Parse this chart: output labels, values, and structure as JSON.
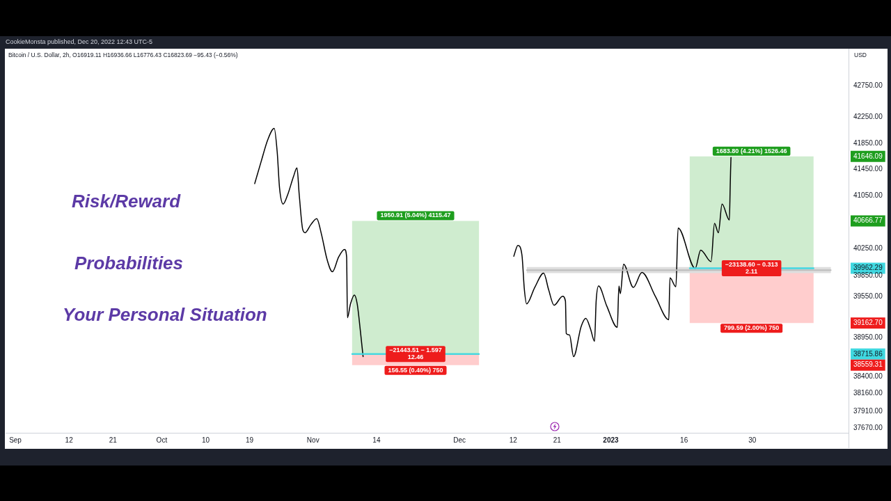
{
  "chart_data": {
    "type": "line",
    "title": "Bitcoin / U.S. Dollar, 2h, O16919.11 H16936.66 L16776.43 C16823.69 −95.43 (−0.56%)",
    "subtitle": "CookieMonsta published, Dec 20, 2022 12:43 UTC-5",
    "ylabel": "USD",
    "log": true,
    "marker": "none",
    "xlim": [
      "2022-08-30T00:00",
      "2023-02-18T17:00"
    ],
    "xticks": [
      {
        "value": "2022-09-01",
        "label": "Sep"
      },
      {
        "value": "2022-09-12",
        "label": "12"
      },
      {
        "value": "2022-09-21",
        "label": "21"
      },
      {
        "value": "2022-10-01",
        "label": "Oct"
      },
      {
        "value": "2022-10-10",
        "label": "10"
      },
      {
        "value": "2022-10-19",
        "label": "19"
      },
      {
        "value": "2022-11-01",
        "label": "Nov"
      },
      {
        "value": "2022-11-14",
        "label": "14"
      },
      {
        "value": "2022-12-01",
        "label": "Dec"
      },
      {
        "value": "2022-12-12",
        "label": "12"
      },
      {
        "value": "2022-12-21",
        "label": "21"
      },
      {
        "value": "2023-01-01",
        "label": "2023"
      },
      {
        "value": "2023-01-16",
        "label": "16"
      },
      {
        "value": "2023-01-30",
        "label": "30"
      }
    ],
    "ylim": [
      37607,
      43335
    ],
    "yticks": [
      {
        "value": 42750,
        "label": "42750.00"
      },
      {
        "value": 42250,
        "label": "42250.00"
      },
      {
        "value": 41850,
        "label": "41850.00"
      },
      41646.09,
      {
        "value": 41450,
        "label": "41450.00"
      },
      {
        "value": 41050,
        "label": "41050.00"
      },
      40666.77,
      {
        "value": 40250,
        "label": "40250.00"
      },
      39962.29,
      {
        "value": 39850,
        "label": "39850.00"
      },
      {
        "value": 39550,
        "label": "39550.00"
      },
      {
        "value": 39162.7,
        "label": "39162.70"
      },
      {
        "value": 38950,
        "label": "38950.00"
      },
      38715.86,
      38559.31,
      {
        "value": 38400,
        "label": "38400.00"
      },
      {
        "value": 38160,
        "label": "38160.00"
      },
      {
        "value": 37910,
        "label": "37910.00"
      },
      {
        "value": 37670,
        "label": "37670.00"
      }
    ],
    "series": [
      {
        "type": "line",
        "color": "#40d8e0",
        "x": [
          "2022-11-09T00:00",
          "2022-12-05T00:00"
        ],
        "values": [
          38715.86,
          38715.86
        ],
        "lower": [
          38715.86,
          38715.86
        ],
        "upper": [
          40666.77,
          40666.77
        ]
      },
      {
        "type": "line",
        "color": "#40d8e0",
        "x": [
          "2022-11-09T00:00",
          "2022-12-05T00:00"
        ],
        "values": [
          38715.86,
          38715.86
        ],
        "lower": [
          38559.31,
          38559.31
        ],
        "upper": [
          38715.86,
          38715.86
        ]
      },
      {
        "type": "line",
        "color": "#40d8e0",
        "x": [
          "2023-01-17T04:00",
          "2023-02-11T13:00"
        ],
        "values": [
          39962.29,
          39962.29
        ],
        "lower": [
          39962.29,
          39962.29
        ],
        "upper": [
          41646.09,
          41646.09
        ]
      },
      {
        "type": "line",
        "color": "#40d8e0",
        "x": [
          "2023-01-17T04:00",
          "2023-02-11T13:00"
        ],
        "values": [
          39962.29,
          39962.29
        ],
        "lower": [
          39162.7,
          39162.7
        ],
        "upper": [
          39962.29,
          39962.29
        ]
      },
      {
        "type": "line",
        "color": "#bdbdbd",
        "x": [
          "2022-12-14T19:00",
          "2023-02-15T02:00"
        ],
        "values": [
          39935,
          39935
        ],
        "lower": [
          39890,
          39890
        ],
        "upper": [
          39980,
          39980
        ]
      },
      {
        "type": "line",
        "color": "#000000",
        "x": [
          "2022-10-20T01:00",
          "2022-10-21T08:00",
          "2022-10-22T18:00",
          "2022-10-24T01:00",
          "2022-10-24T16:00",
          "2022-10-25T03:00",
          "2022-10-25T21:00",
          "2022-10-26T19:00",
          "2022-10-28T00:00",
          "2022-10-28T17:00",
          "2022-10-29T04:00",
          "2022-10-29T21:00",
          "2022-10-30T09:00",
          "2022-10-31T13:00",
          "2022-11-01T18:00",
          "2022-11-02T17:00",
          "2022-11-03T21:00",
          "2022-11-04T23:00",
          "2022-11-06T06:00",
          "2022-11-07T11:00",
          "2022-11-07T21:00",
          "2022-11-08T01:00",
          "2022-11-08T16:00",
          "2022-11-09T11:00",
          "2022-11-10T01:00",
          "2022-11-10T18:00",
          "2022-11-11T06:00",
          "2022-11-30T00:00",
          "2022-12-12T03:00",
          "2022-12-12T23:00",
          "2022-12-13T19:00",
          "2022-12-14T07:00",
          "2022-12-14T18:00",
          "2022-12-16T10:00",
          "2022-12-18T06:00",
          "2022-12-19T06:00",
          "2022-12-20T09:00",
          "2022-12-22T03:00",
          "2022-12-22T17:00",
          "2022-12-22T21:00",
          "2022-12-23T13:00",
          "2022-12-24T09:00",
          "2022-12-25T22:00",
          "2022-12-26T21:00",
          "2022-12-27T20:00",
          "2022-12-28T16:00",
          "2022-12-29T00:00",
          "2022-12-29T12:00",
          "2022-12-31T04:00",
          "2023-01-02T08:00",
          "2023-01-02T16:00",
          "2023-01-02T23:00",
          "2023-01-03T15:00",
          "2023-01-05T15:00",
          "2023-01-07T09:00",
          "2023-01-10T03:00",
          "2023-01-12T21:00",
          "2023-01-13T03:00",
          "2023-01-14T08:00",
          "2023-01-14T19:00",
          "2023-01-18T07:00",
          "2023-01-19T10:00",
          "2023-01-21T13:00",
          "2023-01-22T06:00",
          "2023-01-23T01:00",
          "2023-01-23T19:00",
          "2023-01-25T07:00",
          "2023-01-25T11:00",
          "2023-01-25T13:00",
          "2023-01-25T15:00"
        ],
        "values": [
          41230,
          41560,
          41910,
          42080,
          41700,
          41170,
          40920,
          41060,
          41340,
          41470,
          41060,
          40540,
          40490,
          40610,
          40700,
          40470,
          40090,
          39910,
          40130,
          40240,
          40130,
          39240,
          39440,
          39570,
          39440,
          39010,
          38680,
          null,
          40140,
          40300,
          40160,
          39650,
          39440,
          39680,
          39890,
          39650,
          39420,
          39550,
          39480,
          39010,
          38990,
          38680,
          39110,
          39230,
          39080,
          38900,
          39480,
          39700,
          39410,
          39100,
          39700,
          39590,
          40020,
          39680,
          39900,
          39550,
          39210,
          39820,
          39690,
          40560,
          39960,
          40230,
          40060,
          40630,
          40490,
          40920,
          40680,
          41170,
          41430,
          41630
        ]
      }
    ],
    "annotations": [
      "Risk/Reward",
      "Probabilities",
      "Your Personal Situation",
      {
        "text": "1950.91 (5.04%) 4115.47",
        "x": "2022-11-22T00:00",
        "y": 40666.77
      },
      {
        "text": "−21443.51 − 1.597\n12.46",
        "x": "2022-11-22T00:00",
        "y": 38715.86
      },
      {
        "text": "156.55 (0.40%) 750",
        "x": "2022-11-22T00:00",
        "y": 38559.31
      },
      {
        "text": "1683.80 (4.21%) 1526.46",
        "x": "2023-01-29T20:00",
        "y": 41646.09
      },
      {
        "text": "−23138.60 − 0.313\n2.11",
        "x": "2023-01-29T20:00",
        "y": 39962.29
      },
      {
        "text": "799.59 (2.00%) 750",
        "x": "2023-01-29T20:00",
        "y": 39162.7
      }
    ]
  }
}
